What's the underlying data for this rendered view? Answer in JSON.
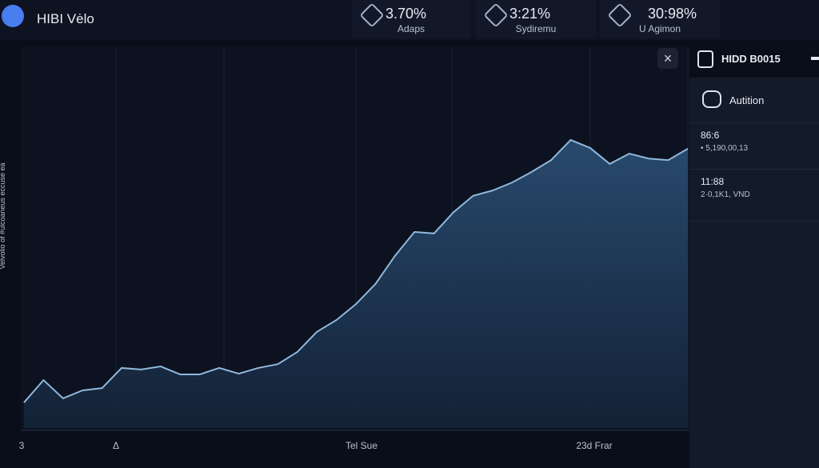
{
  "header": {
    "title": "HIBI Vėlo"
  },
  "stats": [
    {
      "value": "3.70%",
      "label": "Adaps"
    },
    {
      "value": "3:21%",
      "label": "Sydiremu"
    },
    {
      "value": "30:98%",
      "label": "U Agimon"
    }
  ],
  "chart_data": {
    "type": "area",
    "y_label": "Velvolio of #ulcoaneus eccuse ea",
    "x_labels": [
      "3",
      "Δ",
      "Tel Sue",
      "23d Frar"
    ],
    "color": "#8fb8dc",
    "ylim": [
      0,
      100
    ],
    "values": [
      6.7,
      12.6,
      7.8,
      9.9,
      10.5,
      15.8,
      15.4,
      16.2,
      14.1,
      14.1,
      15.8,
      14.3,
      15.8,
      16.8,
      20,
      25.3,
      28.4,
      32.6,
      37.9,
      45.3,
      51.6,
      51.2,
      56.8,
      61.1,
      62.5,
      64.6,
      67.4,
      70.5,
      75.8,
      73.7,
      69.5,
      72.2,
      70.9,
      70.5,
      73.5
    ]
  },
  "sidebar": {
    "title": "HIDD B0015",
    "section": "Autition",
    "items": [
      {
        "title": "86:6",
        "detail": "• 5,190,00,13"
      },
      {
        "title": "11:88",
        "detail": "2·0,1K1, VND"
      }
    ]
  }
}
